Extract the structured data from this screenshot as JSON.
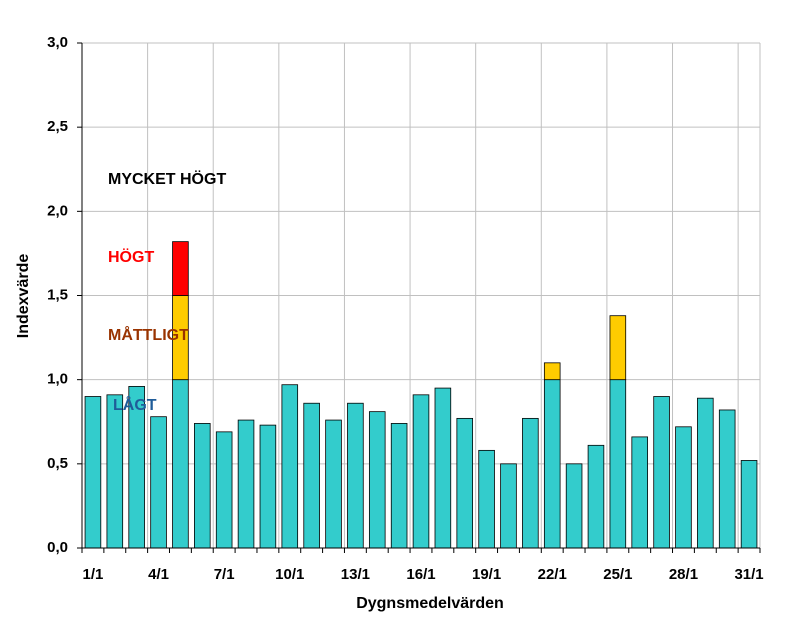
{
  "chart_data": {
    "type": "stacked-bar",
    "categories": [
      "1/1",
      null,
      null,
      "4/1",
      null,
      null,
      "7/1",
      null,
      null,
      "10/1",
      null,
      null,
      "13/1",
      null,
      null,
      "16/1",
      null,
      null,
      "19/1",
      null,
      null,
      "22/1",
      null,
      null,
      "25/1",
      null,
      null,
      "28/1",
      null,
      null,
      "31/1"
    ],
    "series": [
      {
        "color": "#33cccc",
        "values": [
          0.9,
          0.91,
          0.96,
          0.78,
          1.0,
          0.74,
          0.69,
          0.76,
          0.73,
          0.97,
          0.86,
          0.76,
          0.86,
          0.81,
          0.74,
          0.91,
          0.95,
          0.77,
          0.58,
          0.5,
          0.77,
          1.0,
          0.5,
          0.61,
          1.0,
          0.66,
          0.9,
          0.72,
          0.89,
          0.82,
          0.52
        ]
      },
      {
        "color": "#ffcc00",
        "values": [
          null,
          null,
          null,
          null,
          0.5,
          null,
          null,
          null,
          null,
          null,
          null,
          null,
          null,
          null,
          null,
          null,
          null,
          null,
          null,
          null,
          null,
          0.1,
          null,
          null,
          0.38,
          null,
          null,
          null,
          null,
          null,
          null
        ]
      },
      {
        "color": "#ff0000",
        "values": [
          null,
          null,
          null,
          null,
          0.32,
          null,
          null,
          null,
          null,
          null,
          null,
          null,
          null,
          null,
          null,
          null,
          null,
          null,
          null,
          null,
          null,
          null,
          null,
          null,
          null,
          null,
          null,
          null,
          null,
          null,
          null
        ]
      }
    ],
    "ylim": [
      0,
      3
    ],
    "yticks": [
      {
        "value": 0,
        "label": "0,0"
      },
      {
        "value": 0.5,
        "label": "0,5"
      },
      {
        "value": 1,
        "label": "1,0"
      },
      {
        "value": 1.5,
        "label": "1,5"
      },
      {
        "value": 2,
        "label": "2,0"
      },
      {
        "value": 2.5,
        "label": "2,5"
      },
      {
        "value": 3,
        "label": "3,0"
      }
    ],
    "x_label": "Dygnsmedelvärden",
    "y_label": "Indexvärde",
    "grid": true,
    "annotations": [
      {
        "text": "MYCKET HÖGT",
        "color": "#000000"
      },
      {
        "text": "HÖGT",
        "color": "#ff0000"
      },
      {
        "text": "MÅTTLIGT",
        "color": "#993300"
      },
      {
        "text": "LÅGT",
        "color": "#1f5c99"
      }
    ]
  }
}
